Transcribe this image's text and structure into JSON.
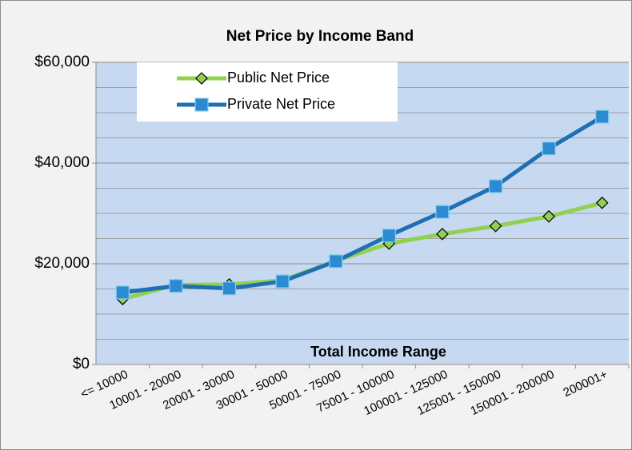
{
  "chart_data": {
    "type": "line",
    "title": "Net Price by Income Band",
    "x_label": "Total Income Range",
    "categories": [
      "<= 10000",
      "10001 - 20000",
      "20001 - 30000",
      "30001 - 50000",
      "50001 - 75000",
      "75001 - 100000",
      "100001 - 125000",
      "125001 - 150000",
      "150001 - 200000",
      "200001+"
    ],
    "series": [
      {
        "name": "Public Net Price",
        "color": "#92d050",
        "marker": "diamond",
        "values": [
          13000,
          15800,
          15900,
          16700,
          20600,
          24000,
          25900,
          27500,
          29400,
          32100
        ]
      },
      {
        "name": "Private Net Price",
        "color": "#1f6fb4",
        "marker": "square",
        "values": [
          14300,
          15600,
          15100,
          16500,
          20500,
          25600,
          30300,
          35400,
          42900,
          49200
        ]
      }
    ],
    "ylim": [
      0,
      60000
    ],
    "yticks": [
      {
        "value": 0,
        "label": "$0"
      },
      {
        "value": 20000,
        "label": "$20,000"
      },
      {
        "value": 40000,
        "label": "$40,000"
      },
      {
        "value": 60000,
        "label": "$60,000"
      }
    ],
    "y_minor_ticks": [
      5000,
      10000,
      15000,
      25000,
      30000,
      35000,
      45000,
      50000,
      55000
    ],
    "grid": true,
    "legend": "top-left"
  }
}
